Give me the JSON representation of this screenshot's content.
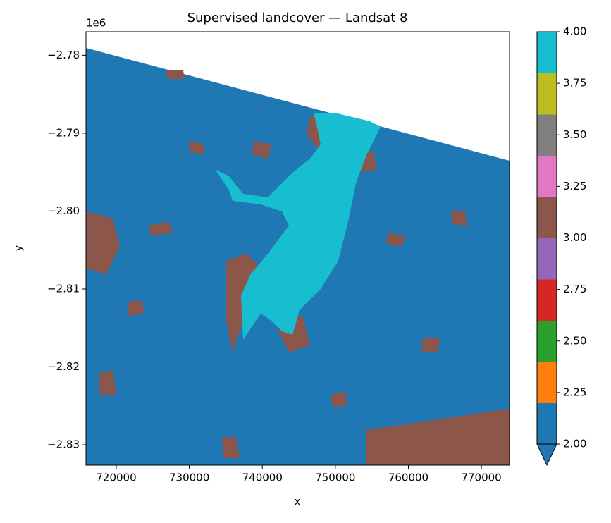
{
  "chart_data": {
    "type": "raster",
    "title": "Supervised landcover — Landsat 8",
    "xlabel": "x",
    "ylabel": "y",
    "y_offset_label": "1e6",
    "xlim": [
      715850,
      773850
    ],
    "xticks": [
      720000,
      730000,
      740000,
      750000,
      760000,
      770000
    ],
    "ylim": [
      -2832620,
      -2776980
    ],
    "yticks": [
      {
        "value": -2780000,
        "label": "−2.78"
      },
      {
        "value": -2790000,
        "label": "−2.79"
      },
      {
        "value": -2800000,
        "label": "−2.80"
      },
      {
        "value": -2810000,
        "label": "−2.81"
      },
      {
        "value": -2820000,
        "label": "−2.82"
      },
      {
        "value": -2830000,
        "label": "−2.83"
      }
    ],
    "colorbar": {
      "clim": [
        2,
        4
      ],
      "extend": "min",
      "colors": [
        "#1f77b4",
        "#ff7f0e",
        "#2ca02c",
        "#d62728",
        "#9467bd",
        "#8c564b",
        "#e377c2",
        "#7f7f7f",
        "#bcbd22",
        "#17becf"
      ],
      "ticks": [
        {
          "value": 2,
          "label": "2.00"
        },
        {
          "value": 2.25,
          "label": "2.25"
        },
        {
          "value": 2.5,
          "label": "2.50"
        },
        {
          "value": 2.75,
          "label": "2.75"
        },
        {
          "value": 3,
          "label": "3.00"
        },
        {
          "value": 3.25,
          "label": "3.25"
        },
        {
          "value": 3.5,
          "label": "3.50"
        },
        {
          "value": 3.75,
          "label": "3.75"
        },
        {
          "value": 4,
          "label": "4.00"
        }
      ]
    }
  }
}
